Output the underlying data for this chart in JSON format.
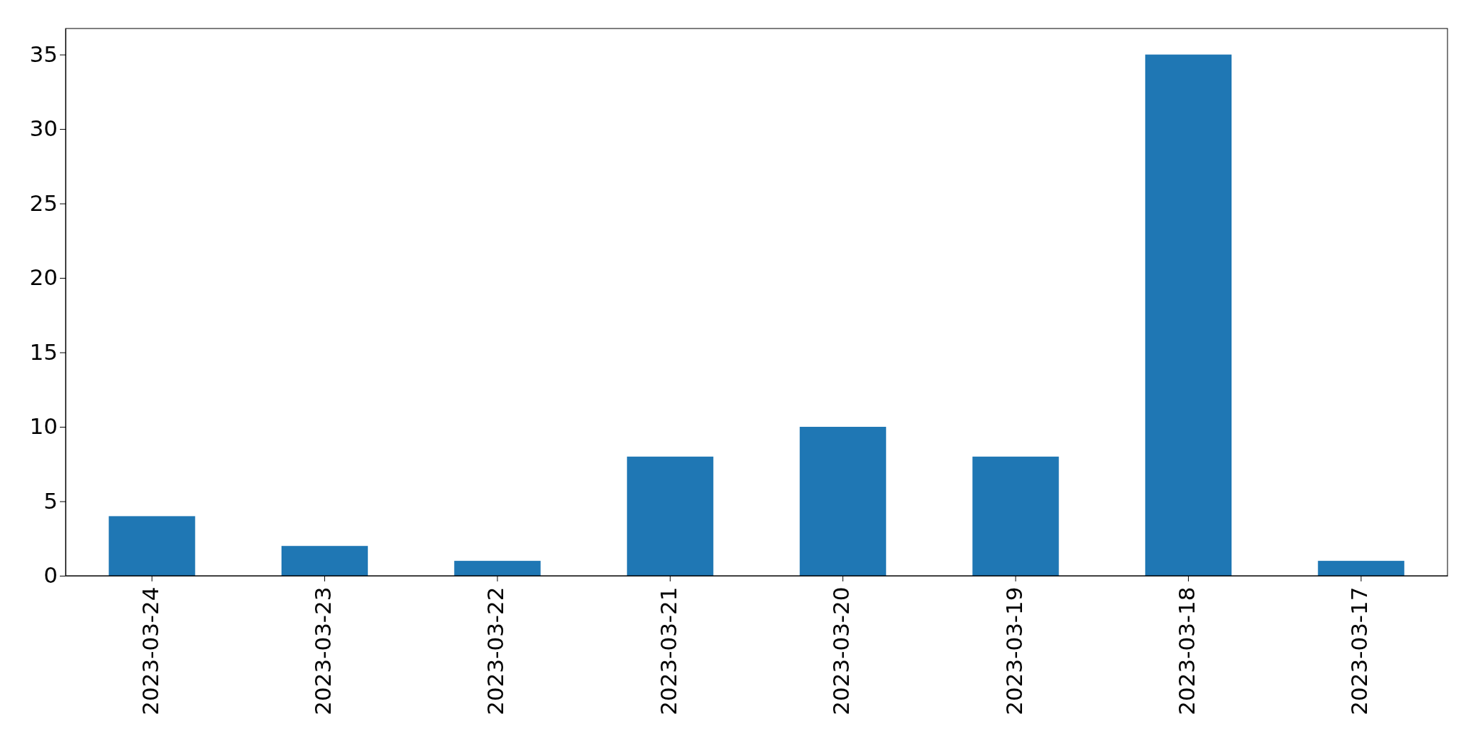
{
  "chart_data": {
    "type": "bar",
    "categories": [
      "2023-03-24",
      "2023-03-23",
      "2023-03-22",
      "2023-03-21",
      "2023-03-20",
      "2023-03-19",
      "2023-03-18",
      "2023-03-17"
    ],
    "values": [
      4,
      2,
      1,
      8,
      10,
      8,
      35,
      1
    ],
    "color": "#1f77b4",
    "ylim": [
      0,
      36.75
    ],
    "yticks": [
      0,
      5,
      10,
      15,
      20,
      25,
      30,
      35
    ],
    "grid": false
  }
}
